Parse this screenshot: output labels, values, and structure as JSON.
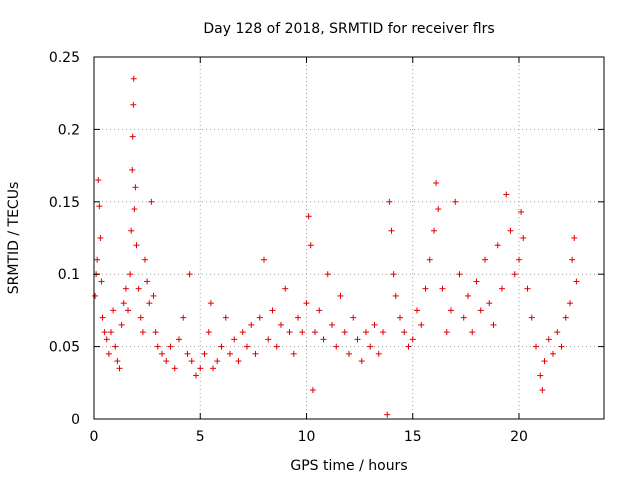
{
  "chart_data": {
    "type": "scatter",
    "title": "Day 128 of 2018, SRMTID for receiver flrs",
    "xlabel": "GPS time / hours",
    "ylabel": "SRMTID / TECUs",
    "xlim": [
      0,
      24
    ],
    "ylim": [
      0,
      0.25
    ],
    "xticks": [
      0,
      5,
      10,
      15,
      20
    ],
    "yticks": [
      0,
      0.05,
      0.1,
      0.15,
      0.2,
      0.25
    ],
    "xtick_labels": [
      "0",
      "5",
      "10",
      "15",
      "20"
    ],
    "ytick_labels": [
      "0",
      "0.05",
      "0.1",
      "0.15",
      "0.2",
      "0.25"
    ],
    "grid": true,
    "marker": "plus",
    "color": "#e00000",
    "series": [
      {
        "name": "SRMTID",
        "points": [
          [
            0.05,
            0.085
          ],
          [
            0.1,
            0.1
          ],
          [
            0.15,
            0.11
          ],
          [
            0.2,
            0.165
          ],
          [
            0.25,
            0.147
          ],
          [
            0.3,
            0.125
          ],
          [
            0.35,
            0.095
          ],
          [
            0.4,
            0.07
          ],
          [
            0.5,
            0.06
          ],
          [
            0.6,
            0.055
          ],
          [
            0.7,
            0.045
          ],
          [
            0.8,
            0.06
          ],
          [
            0.9,
            0.075
          ],
          [
            1.0,
            0.05
          ],
          [
            1.1,
            0.04
          ],
          [
            1.2,
            0.035
          ],
          [
            1.3,
            0.065
          ],
          [
            1.4,
            0.08
          ],
          [
            1.5,
            0.09
          ],
          [
            1.6,
            0.075
          ],
          [
            1.7,
            0.1
          ],
          [
            1.75,
            0.13
          ],
          [
            1.8,
            0.172
          ],
          [
            1.82,
            0.195
          ],
          [
            1.85,
            0.217
          ],
          [
            1.87,
            0.235
          ],
          [
            1.9,
            0.145
          ],
          [
            1.95,
            0.16
          ],
          [
            2.0,
            0.12
          ],
          [
            2.1,
            0.09
          ],
          [
            2.2,
            0.07
          ],
          [
            2.3,
            0.06
          ],
          [
            2.4,
            0.11
          ],
          [
            2.5,
            0.095
          ],
          [
            2.6,
            0.08
          ],
          [
            2.7,
            0.15
          ],
          [
            2.8,
            0.085
          ],
          [
            2.9,
            0.06
          ],
          [
            3.0,
            0.05
          ],
          [
            3.2,
            0.045
          ],
          [
            3.4,
            0.04
          ],
          [
            3.6,
            0.05
          ],
          [
            3.8,
            0.035
          ],
          [
            4.0,
            0.055
          ],
          [
            4.2,
            0.07
          ],
          [
            4.4,
            0.045
          ],
          [
            4.5,
            0.1
          ],
          [
            4.6,
            0.04
          ],
          [
            4.8,
            0.03
          ],
          [
            5.0,
            0.035
          ],
          [
            5.2,
            0.045
          ],
          [
            5.4,
            0.06
          ],
          [
            5.5,
            0.08
          ],
          [
            5.6,
            0.035
          ],
          [
            5.8,
            0.04
          ],
          [
            6.0,
            0.05
          ],
          [
            6.2,
            0.07
          ],
          [
            6.4,
            0.045
          ],
          [
            6.6,
            0.055
          ],
          [
            6.8,
            0.04
          ],
          [
            7.0,
            0.06
          ],
          [
            7.2,
            0.05
          ],
          [
            7.4,
            0.065
          ],
          [
            7.6,
            0.045
          ],
          [
            7.8,
            0.07
          ],
          [
            8.0,
            0.11
          ],
          [
            8.2,
            0.055
          ],
          [
            8.4,
            0.075
          ],
          [
            8.6,
            0.05
          ],
          [
            8.8,
            0.065
          ],
          [
            9.0,
            0.09
          ],
          [
            9.2,
            0.06
          ],
          [
            9.4,
            0.045
          ],
          [
            9.6,
            0.07
          ],
          [
            9.8,
            0.06
          ],
          [
            10.0,
            0.08
          ],
          [
            10.1,
            0.14
          ],
          [
            10.2,
            0.12
          ],
          [
            10.3,
            0.02
          ],
          [
            10.4,
            0.06
          ],
          [
            10.6,
            0.075
          ],
          [
            10.8,
            0.055
          ],
          [
            11.0,
            0.1
          ],
          [
            11.2,
            0.065
          ],
          [
            11.4,
            0.05
          ],
          [
            11.6,
            0.085
          ],
          [
            11.8,
            0.06
          ],
          [
            12.0,
            0.045
          ],
          [
            12.2,
            0.07
          ],
          [
            12.4,
            0.055
          ],
          [
            12.6,
            0.04
          ],
          [
            12.8,
            0.06
          ],
          [
            13.0,
            0.05
          ],
          [
            13.2,
            0.065
          ],
          [
            13.4,
            0.045
          ],
          [
            13.6,
            0.06
          ],
          [
            13.8,
            0.003
          ],
          [
            13.9,
            0.15
          ],
          [
            14.0,
            0.13
          ],
          [
            14.1,
            0.1
          ],
          [
            14.2,
            0.085
          ],
          [
            14.4,
            0.07
          ],
          [
            14.6,
            0.06
          ],
          [
            14.8,
            0.05
          ],
          [
            15.0,
            0.055
          ],
          [
            15.2,
            0.075
          ],
          [
            15.4,
            0.065
          ],
          [
            15.6,
            0.09
          ],
          [
            15.8,
            0.11
          ],
          [
            16.0,
            0.13
          ],
          [
            16.1,
            0.163
          ],
          [
            16.2,
            0.145
          ],
          [
            16.4,
            0.09
          ],
          [
            16.6,
            0.06
          ],
          [
            16.8,
            0.075
          ],
          [
            17.0,
            0.15
          ],
          [
            17.2,
            0.1
          ],
          [
            17.4,
            0.07
          ],
          [
            17.6,
            0.085
          ],
          [
            17.8,
            0.06
          ],
          [
            18.0,
            0.095
          ],
          [
            18.2,
            0.075
          ],
          [
            18.4,
            0.11
          ],
          [
            18.6,
            0.08
          ],
          [
            18.8,
            0.065
          ],
          [
            19.0,
            0.12
          ],
          [
            19.2,
            0.09
          ],
          [
            19.4,
            0.155
          ],
          [
            19.6,
            0.13
          ],
          [
            19.8,
            0.1
          ],
          [
            20.0,
            0.11
          ],
          [
            20.1,
            0.143
          ],
          [
            20.2,
            0.125
          ],
          [
            20.4,
            0.09
          ],
          [
            20.6,
            0.07
          ],
          [
            20.8,
            0.05
          ],
          [
            21.0,
            0.03
          ],
          [
            21.1,
            0.02
          ],
          [
            21.2,
            0.04
          ],
          [
            21.4,
            0.055
          ],
          [
            21.6,
            0.045
          ],
          [
            21.8,
            0.06
          ],
          [
            22.0,
            0.05
          ],
          [
            22.2,
            0.07
          ],
          [
            22.4,
            0.08
          ],
          [
            22.5,
            0.11
          ],
          [
            22.6,
            0.125
          ],
          [
            22.7,
            0.095
          ]
        ]
      }
    ]
  }
}
